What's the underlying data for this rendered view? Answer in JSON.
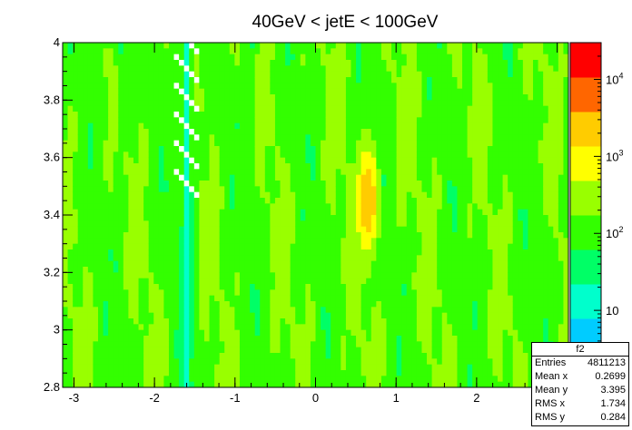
{
  "chart_data": {
    "type": "heatmap",
    "title": "40GeV < jetE < 100GeV",
    "xlabel": "",
    "ylabel": "",
    "xlim": [
      -3.14,
      3.14
    ],
    "ylim": [
      2.8,
      4.0
    ],
    "zscale": "log",
    "zlim": [
      1,
      30000
    ],
    "x_ticks": [
      "-3",
      "-2",
      "-1",
      "0",
      "1",
      "2",
      "3"
    ],
    "y_ticks": [
      "2.8",
      "3",
      "3.2",
      "3.4",
      "3.6",
      "3.8",
      "4"
    ],
    "z_ticks": [
      "10",
      "10",
      "10",
      "10"
    ],
    "z_tick_exponents": [
      "",
      "2",
      "3",
      "4"
    ],
    "features": [
      {
        "kind": "low-band",
        "x": -1.6,
        "description_units": "phi",
        "value": 10
      },
      {
        "kind": "low-band",
        "x": -2.4,
        "value": 30
      },
      {
        "kind": "low-band",
        "x": -0.8,
        "value": 50
      },
      {
        "kind": "peak",
        "x": 0.65,
        "y": 3.45,
        "value": 3000
      }
    ],
    "background_value": 150,
    "colors": [
      "#ffffff",
      "#3300ff",
      "#00ccff",
      "#00ffcc",
      "#00ff66",
      "#33ff00",
      "#99ff00",
      "#ffff00",
      "#ffcc00",
      "#ff6600",
      "#ff0000"
    ]
  },
  "stats": {
    "name": "f2",
    "rows": [
      {
        "label": "Entries",
        "value": "4811213"
      },
      {
        "label": "Mean x",
        "value": "0.2699"
      },
      {
        "label": "Mean y",
        "value": "3.395"
      },
      {
        "label": "RMS x",
        "value": "1.734"
      },
      {
        "label": "RMS y",
        "value": "0.284"
      }
    ]
  }
}
